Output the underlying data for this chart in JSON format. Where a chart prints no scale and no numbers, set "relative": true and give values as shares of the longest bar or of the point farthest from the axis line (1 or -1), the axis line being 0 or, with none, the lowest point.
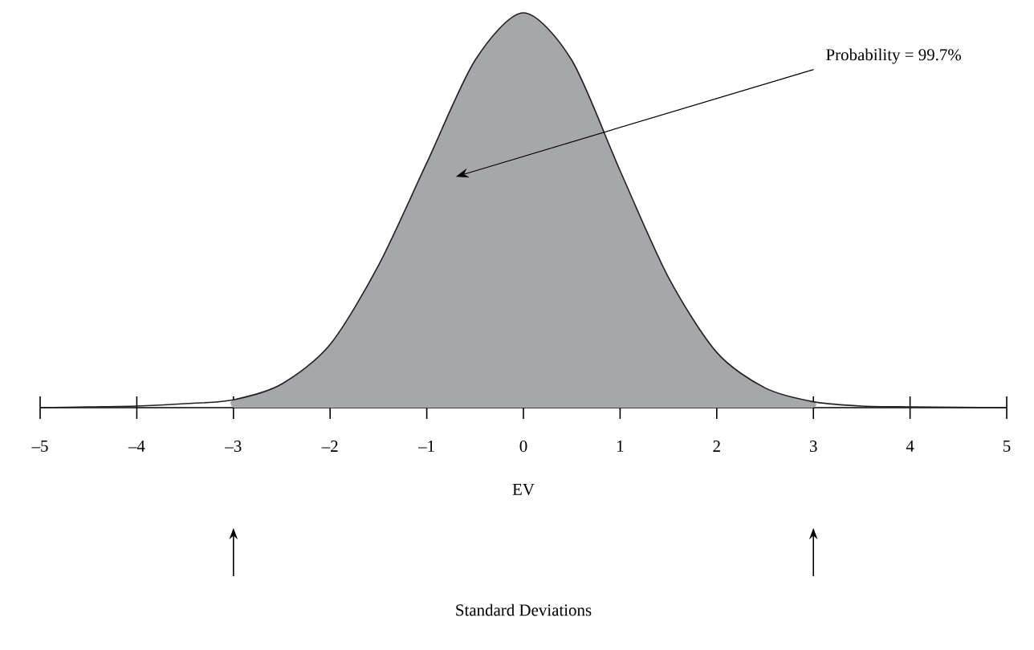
{
  "chart_data": {
    "type": "area",
    "relative": true,
    "xlim": [
      -5,
      5
    ],
    "xticks": [
      {
        "value": -5,
        "label": "–5"
      },
      {
        "value": -4,
        "label": "–4"
      },
      {
        "value": -3,
        "label": "–3"
      },
      {
        "value": -2,
        "label": "–2"
      },
      {
        "value": -1,
        "label": "–1"
      },
      0,
      1,
      2,
      3,
      4,
      5
    ],
    "series": [
      {
        "color": "#a6a7ab",
        "x": [
          -3,
          -2.5,
          -2,
          -1.5,
          -1,
          -0.5,
          0,
          0.5,
          1,
          1.5,
          2,
          2.5,
          3
        ],
        "values": [
          0.02,
          0.06,
          0.16,
          0.36,
          0.62,
          0.88,
          1,
          0.88,
          0.6,
          0.33,
          0.14,
          0.05,
          0.015
        ]
      },
      {
        "type": "line",
        "color": "#231f20",
        "x": [
          -5,
          -4.5,
          -4,
          -3.5,
          -3,
          -2.5,
          -2,
          -1.5,
          -1,
          -0.5,
          0,
          0.5,
          1,
          1.5,
          2,
          2.5,
          3,
          3.5,
          4,
          4.5,
          5
        ],
        "values": [
          0,
          0.002,
          0.004,
          0.01,
          0.02,
          0.06,
          0.16,
          0.36,
          0.62,
          0.88,
          1,
          0.88,
          0.6,
          0.33,
          0.14,
          0.05,
          0.015,
          0.004,
          0.002,
          0.001,
          0
        ]
      }
    ],
    "annotations": [
      "Probability = 99.7%",
      "EV",
      "Standard Deviations"
    ]
  }
}
